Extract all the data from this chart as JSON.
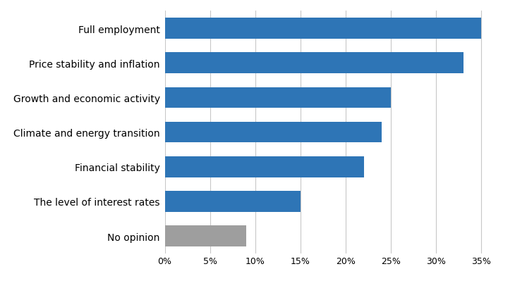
{
  "categories": [
    "No opinion",
    "The level of interest rates",
    "Financial stability",
    "Climate and energy transition",
    "Growth and economic activity",
    "Price stability and inflation",
    "Full employment"
  ],
  "values": [
    9,
    15,
    22,
    24,
    25,
    33,
    35
  ],
  "bar_colors": [
    "#9e9e9e",
    "#2e75b6",
    "#2e75b6",
    "#2e75b6",
    "#2e75b6",
    "#2e75b6",
    "#2e75b6"
  ],
  "xlim": [
    0,
    37
  ],
  "xticks": [
    0,
    5,
    10,
    15,
    20,
    25,
    30,
    35
  ],
  "xtick_labels": [
    "0%",
    "5%",
    "10%",
    "15%",
    "20%",
    "25%",
    "30%",
    "35%"
  ],
  "background_color": "#ffffff",
  "bar_height": 0.6,
  "grid_color": "#c8c8c8",
  "label_fontsize": 10,
  "tick_fontsize": 9
}
